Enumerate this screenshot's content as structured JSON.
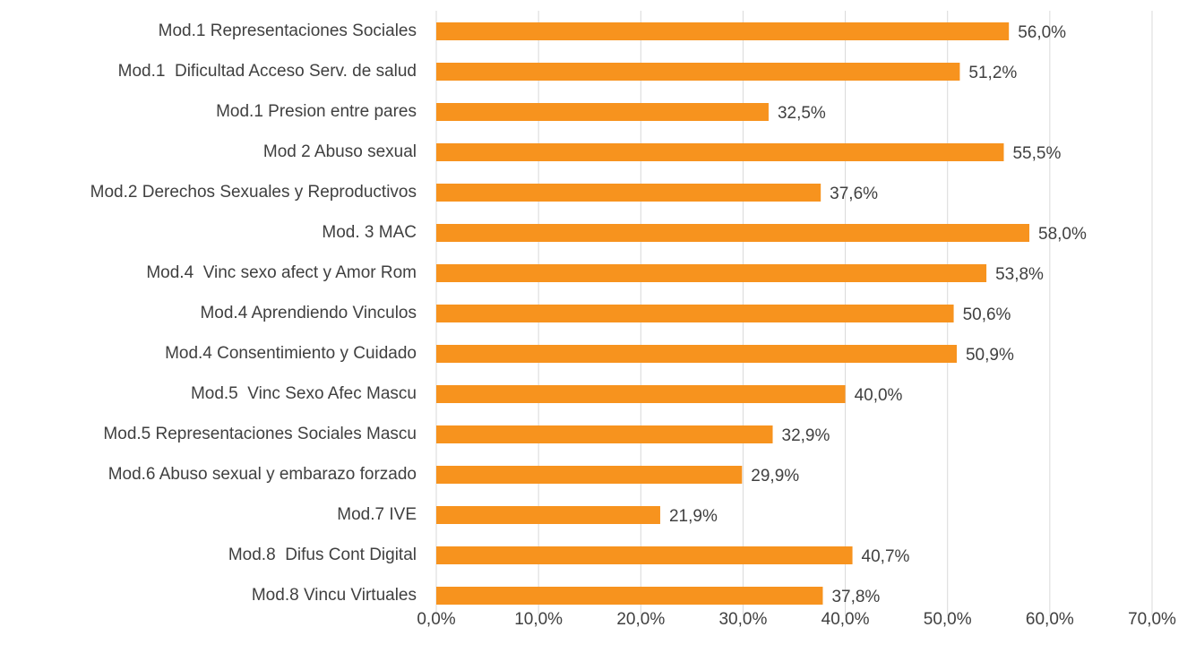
{
  "chart_data": {
    "type": "bar",
    "orientation": "horizontal",
    "categories": [
      "Mod.1 Representaciones Sociales",
      "Mod.1  Dificultad Acceso Serv. de salud",
      "Mod.1 Presion entre pares",
      "Mod 2 Abuso sexual",
      "Mod.2 Derechos Sexuales y Reproductivos",
      "Mod. 3 MAC",
      "Mod.4  Vinc sexo afect y Amor Rom",
      "Mod.4 Aprendiendo Vinculos",
      "Mod.4 Consentimiento y Cuidado",
      "Mod.5  Vinc Sexo Afec Mascu",
      "Mod.5 Representaciones Sociales Mascu",
      "Mod.6 Abuso sexual y embarazo forzado",
      "Mod.7 IVE",
      "Mod.8  Difus Cont Digital",
      "Mod.8 Vincu Virtuales"
    ],
    "values": [
      56.0,
      51.2,
      32.5,
      55.5,
      37.6,
      58.0,
      53.8,
      50.6,
      50.9,
      40.0,
      32.9,
      29.9,
      21.9,
      40.7,
      37.8
    ],
    "value_labels": [
      "56,0%",
      "51,2%",
      "32,5%",
      "55,5%",
      "37,6%",
      "58,0%",
      "53,8%",
      "50,6%",
      "50,9%",
      "40,0%",
      "32,9%",
      "29,9%",
      "21,9%",
      "40,7%",
      "37,8%"
    ],
    "color": "#f7931e",
    "xlim": [
      0,
      70
    ],
    "xticks": [
      {
        "value": 0,
        "label": "0,0%"
      },
      {
        "value": 10,
        "label": "10,0%"
      },
      {
        "value": 20,
        "label": "20,0%"
      },
      {
        "value": 30,
        "label": "30,0%"
      },
      {
        "value": 40,
        "label": "40,0%"
      },
      {
        "value": 50,
        "label": "50,0%"
      },
      {
        "value": 60,
        "label": "60,0%"
      },
      {
        "value": 70,
        "label": "70,0%"
      }
    ],
    "grid": true
  }
}
